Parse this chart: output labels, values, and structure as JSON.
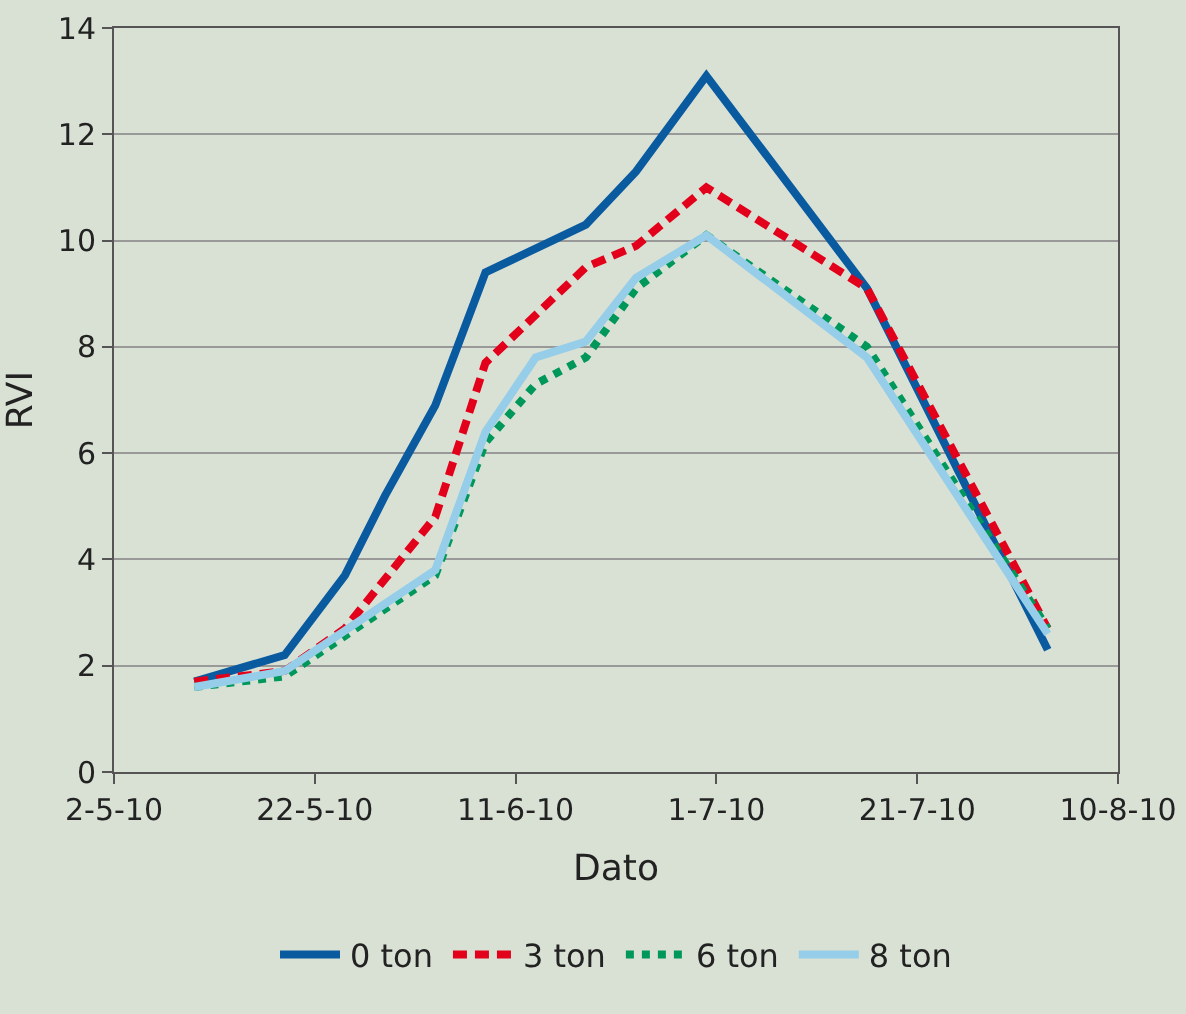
{
  "chart_data": {
    "type": "line",
    "xlabel": "Dato",
    "ylabel": "RVI",
    "xlim": [
      "2010-05-02",
      "2010-08-10"
    ],
    "xticks": [
      {
        "value": "2010-05-02",
        "label": "2-5-10"
      },
      {
        "value": "2010-05-22",
        "label": "22-5-10"
      },
      {
        "value": "2010-06-11",
        "label": "11-6-10"
      },
      {
        "value": "2010-07-01",
        "label": "1-7-10"
      },
      {
        "value": "2010-07-21",
        "label": "21-7-10"
      },
      {
        "value": "2010-08-10",
        "label": "10-8-10"
      }
    ],
    "ylim": [
      0,
      14
    ],
    "yticks": [
      0,
      2,
      4,
      6,
      8,
      10,
      12,
      14
    ],
    "grid": "y",
    "legend": "bottom",
    "marker": "none",
    "series": [
      {
        "name": "0 ton",
        "color": "#0a5aa0",
        "line_style": "solid",
        "x": [
          "2010-05-10",
          "2010-05-19",
          "2010-05-25",
          "2010-05-29",
          "2010-06-03",
          "2010-06-08",
          "2010-06-18",
          "2010-06-23",
          "2010-06-30",
          "2010-07-16",
          "2010-08-03"
        ],
        "values": [
          1.7,
          2.2,
          3.7,
          5.2,
          6.9,
          9.4,
          10.3,
          11.3,
          13.1,
          9.1,
          2.3
        ]
      },
      {
        "name": "3 ton",
        "color": "#e3001b",
        "line_style": "dashed",
        "x": [
          "2010-05-10",
          "2010-05-19",
          "2010-05-25",
          "2010-06-03",
          "2010-06-08",
          "2010-06-18",
          "2010-06-23",
          "2010-06-30",
          "2010-07-16",
          "2010-08-03"
        ],
        "values": [
          1.7,
          1.9,
          2.7,
          4.8,
          7.7,
          9.5,
          9.9,
          11.0,
          9.1,
          2.7
        ]
      },
      {
        "name": "6 ton",
        "color": "#00975a",
        "line_style": "dotted",
        "x": [
          "2010-05-10",
          "2010-05-19",
          "2010-06-03",
          "2010-06-08",
          "2010-06-13",
          "2010-06-18",
          "2010-06-23",
          "2010-06-30",
          "2010-07-16",
          "2010-08-03"
        ],
        "values": [
          1.6,
          1.8,
          3.7,
          6.2,
          7.3,
          7.8,
          9.1,
          10.1,
          8.0,
          2.7
        ]
      },
      {
        "name": "8 ton",
        "color": "#96cde8",
        "line_style": "solid",
        "x": [
          "2010-05-10",
          "2010-05-19",
          "2010-06-03",
          "2010-06-08",
          "2010-06-13",
          "2010-06-18",
          "2010-06-23",
          "2010-06-30",
          "2010-07-16",
          "2010-08-03"
        ],
        "values": [
          1.6,
          1.9,
          3.8,
          6.4,
          7.8,
          8.1,
          9.3,
          10.1,
          7.8,
          2.6
        ]
      }
    ]
  }
}
